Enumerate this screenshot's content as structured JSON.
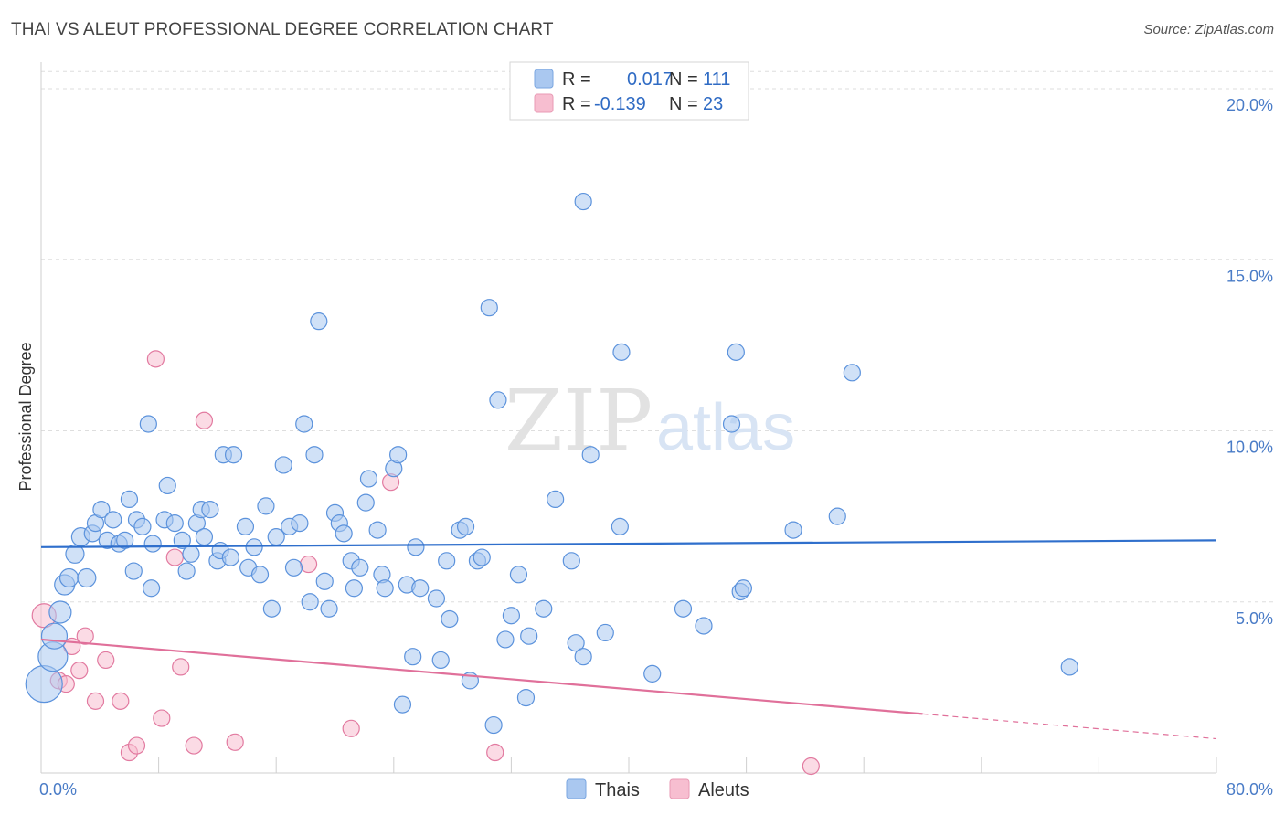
{
  "header": {
    "title": "THAI VS ALEUT PROFESSIONAL DEGREE CORRELATION CHART",
    "source": "Source: ZipAtlas.com"
  },
  "watermark": {
    "zip": "ZIP",
    "atlas": "atlas"
  },
  "legend": {
    "rows": [
      {
        "r_label": "R =",
        "r_value": "0.017",
        "n_label": "N =",
        "n_value": "111",
        "color": "#aac8f0"
      },
      {
        "r_label": "R =",
        "r_value": "-0.139",
        "n_label": "N =",
        "n_value": "23",
        "color": "#f7bed0"
      }
    ]
  },
  "bottom_legend": [
    {
      "label": "Thais",
      "color": "#aac8f0"
    },
    {
      "label": "Aleuts",
      "color": "#f7bed0"
    }
  ],
  "chart_data": {
    "type": "scatter",
    "ylabel": "Professional Degree",
    "x_tick_labels": [
      "0.0%",
      "80.0%"
    ],
    "y_tick_labels": [
      "5.0%",
      "10.0%",
      "15.0%",
      "20.0%"
    ],
    "y_ticks": [
      5,
      10,
      15,
      20
    ],
    "xlim": [
      0,
      80
    ],
    "ylim": [
      0,
      20.5
    ],
    "grid": true,
    "legend_placement": "top-center",
    "colors": {
      "thais": "#5b92dc",
      "thais_fill": "#aac8f0",
      "aleuts": "#e27aa0",
      "aleuts_fill": "#f7bed0",
      "thais_line": "#2f6fcc",
      "aleuts_line": "#e0709a"
    },
    "series": [
      {
        "name": "Thais",
        "trend": {
          "x": [
            0,
            80
          ],
          "y": [
            6.6,
            6.8
          ],
          "solid_until": 80
        },
        "points": [
          [
            0.2,
            2.6,
            20
          ],
          [
            0.8,
            3.4,
            16
          ],
          [
            0.9,
            4.0,
            14
          ],
          [
            1.3,
            4.7,
            12
          ],
          [
            1.6,
            5.5,
            11
          ],
          [
            1.9,
            5.7,
            10
          ],
          [
            2.3,
            6.4,
            10
          ],
          [
            2.7,
            6.9,
            10
          ],
          [
            3.1,
            5.7,
            10
          ],
          [
            3.5,
            7.0,
            9
          ],
          [
            3.7,
            7.3,
            9
          ],
          [
            4.1,
            7.7,
            9
          ],
          [
            4.5,
            6.8,
            9
          ],
          [
            4.9,
            7.4,
            9
          ],
          [
            5.3,
            6.7,
            9
          ],
          [
            5.7,
            6.8,
            9
          ],
          [
            6.0,
            8.0,
            9
          ],
          [
            6.3,
            5.9,
            9
          ],
          [
            6.5,
            7.4,
            9
          ],
          [
            6.9,
            7.2,
            9
          ],
          [
            7.5,
            5.4,
            9
          ],
          [
            7.6,
            6.7,
            9
          ],
          [
            7.3,
            10.2,
            9
          ],
          [
            8.4,
            7.4,
            9
          ],
          [
            8.6,
            8.4,
            9
          ],
          [
            9.1,
            7.3,
            9
          ],
          [
            9.6,
            6.8,
            9
          ],
          [
            9.9,
            5.9,
            9
          ],
          [
            10.2,
            6.4,
            9
          ],
          [
            10.6,
            7.3,
            9
          ],
          [
            10.9,
            7.7,
            9
          ],
          [
            11.1,
            6.9,
            9
          ],
          [
            11.5,
            7.7,
            9
          ],
          [
            12.0,
            6.2,
            9
          ],
          [
            12.2,
            6.5,
            9
          ],
          [
            12.4,
            9.3,
            9
          ],
          [
            13.1,
            9.3,
            9
          ],
          [
            12.9,
            6.3,
            9
          ],
          [
            13.9,
            7.2,
            9
          ],
          [
            14.1,
            6.0,
            9
          ],
          [
            14.5,
            6.6,
            9
          ],
          [
            14.9,
            5.8,
            9
          ],
          [
            15.3,
            7.8,
            9
          ],
          [
            15.7,
            4.8,
            9
          ],
          [
            16.0,
            6.9,
            9
          ],
          [
            16.5,
            9.0,
            9
          ],
          [
            16.9,
            7.2,
            9
          ],
          [
            17.2,
            6.0,
            9
          ],
          [
            17.6,
            7.3,
            9
          ],
          [
            17.9,
            10.2,
            9
          ],
          [
            18.3,
            5.0,
            9
          ],
          [
            18.6,
            9.3,
            9
          ],
          [
            18.9,
            13.2,
            9
          ],
          [
            19.3,
            5.6,
            9
          ],
          [
            19.6,
            4.8,
            9
          ],
          [
            20.0,
            7.6,
            9
          ],
          [
            20.3,
            7.3,
            9
          ],
          [
            20.6,
            7.0,
            9
          ],
          [
            21.1,
            6.2,
            9
          ],
          [
            21.3,
            5.4,
            9
          ],
          [
            21.7,
            6.0,
            9
          ],
          [
            22.1,
            7.9,
            9
          ],
          [
            22.3,
            8.6,
            9
          ],
          [
            22.9,
            7.1,
            9
          ],
          [
            23.2,
            5.8,
            9
          ],
          [
            23.4,
            5.4,
            9
          ],
          [
            24.0,
            8.9,
            9
          ],
          [
            24.3,
            9.3,
            9
          ],
          [
            24.9,
            5.5,
            9
          ],
          [
            25.3,
            3.4,
            9
          ],
          [
            25.5,
            6.6,
            9
          ],
          [
            25.8,
            5.4,
            9
          ],
          [
            24.6,
            2.0,
            9
          ],
          [
            26.9,
            5.1,
            9
          ],
          [
            27.2,
            3.3,
            9
          ],
          [
            27.6,
            6.2,
            9
          ],
          [
            27.8,
            4.5,
            9
          ],
          [
            28.5,
            7.1,
            9
          ],
          [
            28.9,
            7.2,
            9
          ],
          [
            29.2,
            2.7,
            9
          ],
          [
            29.7,
            6.2,
            9
          ],
          [
            30.0,
            6.3,
            9
          ],
          [
            30.5,
            13.6,
            9
          ],
          [
            30.8,
            1.4,
            9
          ],
          [
            31.1,
            10.9,
            9
          ],
          [
            31.6,
            3.9,
            9
          ],
          [
            32.0,
            4.6,
            9
          ],
          [
            32.5,
            5.8,
            9
          ],
          [
            33.0,
            2.2,
            9
          ],
          [
            33.2,
            4.0,
            9
          ],
          [
            34.2,
            4.8,
            9
          ],
          [
            35.0,
            8.0,
            9
          ],
          [
            36.1,
            6.2,
            9
          ],
          [
            36.4,
            3.8,
            9
          ],
          [
            36.9,
            3.4,
            9
          ],
          [
            36.9,
            16.7,
            9
          ],
          [
            37.4,
            9.3,
            9
          ],
          [
            38.4,
            4.1,
            9
          ],
          [
            39.4,
            7.2,
            9
          ],
          [
            39.5,
            12.3,
            9
          ],
          [
            41.6,
            2.9,
            9
          ],
          [
            43.7,
            4.8,
            9
          ],
          [
            45.1,
            4.3,
            9
          ],
          [
            47.0,
            10.2,
            9
          ],
          [
            47.3,
            12.3,
            9
          ],
          [
            47.6,
            5.3,
            9
          ],
          [
            47.8,
            5.4,
            9
          ],
          [
            51.2,
            7.1,
            9
          ],
          [
            54.2,
            7.5,
            9
          ],
          [
            55.2,
            11.7,
            9
          ],
          [
            70.0,
            3.1,
            9
          ]
        ]
      },
      {
        "name": "Aleuts",
        "trend": {
          "x": [
            0,
            80
          ],
          "y": [
            3.9,
            1.0
          ],
          "solid_until": 60
        },
        "points": [
          [
            0.2,
            4.6,
            13
          ],
          [
            1.2,
            2.7,
            9
          ],
          [
            1.7,
            2.6,
            9
          ],
          [
            2.1,
            3.7,
            9
          ],
          [
            2.6,
            3.0,
            9
          ],
          [
            3.0,
            4.0,
            9
          ],
          [
            3.7,
            2.1,
            9
          ],
          [
            4.4,
            3.3,
            9
          ],
          [
            5.4,
            2.1,
            9
          ],
          [
            6.0,
            0.6,
            9
          ],
          [
            6.5,
            0.8,
            9
          ],
          [
            7.8,
            12.1,
            9
          ],
          [
            8.2,
            1.6,
            9
          ],
          [
            9.1,
            6.3,
            9
          ],
          [
            9.5,
            3.1,
            9
          ],
          [
            10.4,
            0.8,
            9
          ],
          [
            11.1,
            10.3,
            9
          ],
          [
            13.2,
            0.9,
            9
          ],
          [
            18.2,
            6.1,
            9
          ],
          [
            21.1,
            1.3,
            9
          ],
          [
            23.8,
            8.5,
            9
          ],
          [
            30.9,
            0.6,
            9
          ],
          [
            52.4,
            0.2,
            9
          ]
        ]
      }
    ]
  }
}
